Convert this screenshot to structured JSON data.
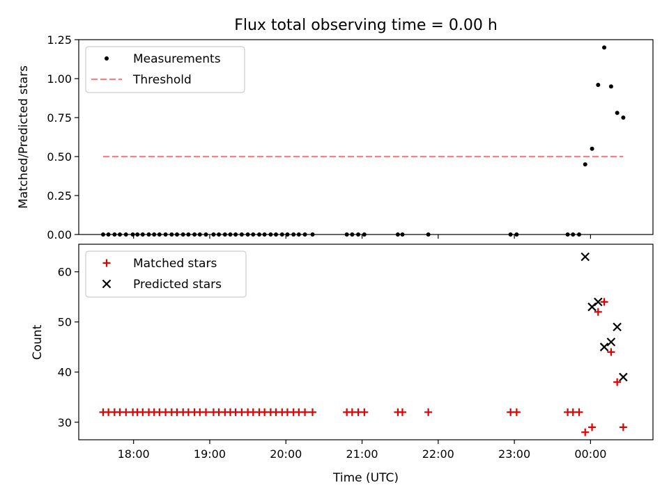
{
  "title": "Flux total observing time = 0.00 h",
  "colors": {
    "threshold": "#ff7f7f",
    "measurement": "#000000",
    "matched": "#e00000",
    "predicted": "#000000"
  },
  "chart_data": [
    {
      "type": "scatter",
      "name": "ratio",
      "ylabel": "Matched/Predicted stars",
      "xlabel": "",
      "xlim": [
        17.28,
        24.82
      ],
      "ylim": [
        0,
        1.25
      ],
      "yticks": [
        0.0,
        0.25,
        0.5,
        0.75,
        1.0,
        1.25
      ],
      "ytick_labels": [
        "0.00",
        "0.25",
        "0.50",
        "0.75",
        "1.00",
        "1.25"
      ],
      "legend": {
        "placement": "top-left",
        "entries": [
          {
            "label": "Measurements",
            "marker": "dot"
          },
          {
            "label": "Threshold",
            "marker": "dashed-line"
          }
        ]
      },
      "series": [
        {
          "name": "Measurements",
          "points": [
            [
              17.6,
              0.0
            ],
            [
              17.67,
              0.0
            ],
            [
              17.75,
              0.0
            ],
            [
              17.82,
              0.0
            ],
            [
              17.9,
              0.0
            ],
            [
              17.99,
              0.0
            ],
            [
              18.05,
              0.0
            ],
            [
              18.12,
              0.0
            ],
            [
              18.2,
              0.0
            ],
            [
              18.27,
              0.0
            ],
            [
              18.34,
              0.0
            ],
            [
              18.42,
              0.0
            ],
            [
              18.5,
              0.0
            ],
            [
              18.57,
              0.0
            ],
            [
              18.65,
              0.0
            ],
            [
              18.72,
              0.0
            ],
            [
              18.8,
              0.0
            ],
            [
              18.87,
              0.0
            ],
            [
              18.95,
              0.0
            ],
            [
              19.05,
              0.0
            ],
            [
              19.12,
              0.0
            ],
            [
              19.2,
              0.0
            ],
            [
              19.27,
              0.0
            ],
            [
              19.34,
              0.0
            ],
            [
              19.42,
              0.0
            ],
            [
              19.5,
              0.0
            ],
            [
              19.57,
              0.0
            ],
            [
              19.65,
              0.0
            ],
            [
              19.72,
              0.0
            ],
            [
              19.8,
              0.0
            ],
            [
              19.87,
              0.0
            ],
            [
              19.95,
              0.0
            ],
            [
              20.02,
              0.0
            ],
            [
              20.1,
              0.0
            ],
            [
              20.17,
              0.0
            ],
            [
              20.25,
              0.0
            ],
            [
              20.35,
              0.0
            ],
            [
              20.8,
              0.0
            ],
            [
              20.87,
              0.0
            ],
            [
              20.95,
              0.0
            ],
            [
              21.03,
              0.0
            ],
            [
              21.47,
              0.0
            ],
            [
              21.53,
              0.0
            ],
            [
              21.87,
              0.0
            ],
            [
              22.95,
              0.0
            ],
            [
              23.03,
              0.0
            ],
            [
              23.7,
              0.0
            ],
            [
              23.77,
              0.0
            ],
            [
              23.85,
              0.0
            ],
            [
              23.93,
              0.45
            ],
            [
              24.02,
              0.55
            ],
            [
              24.1,
              0.96
            ],
            [
              24.18,
              1.2
            ],
            [
              24.27,
              0.95
            ],
            [
              24.35,
              0.78
            ],
            [
              24.43,
              0.75
            ]
          ]
        },
        {
          "name": "Threshold",
          "line": [
            [
              17.6,
              0.5
            ],
            [
              24.43,
              0.5
            ]
          ]
        }
      ]
    },
    {
      "type": "scatter",
      "name": "counts",
      "ylabel": "Count",
      "xlabel": "Time (UTC)",
      "xlim": [
        17.28,
        24.82
      ],
      "ylim": [
        26.5,
        65.5
      ],
      "yticks": [
        30,
        40,
        50,
        60
      ],
      "ytick_labels": [
        "30",
        "40",
        "50",
        "60"
      ],
      "xticks": [
        18,
        19,
        20,
        21,
        22,
        23,
        24
      ],
      "xtick_labels": [
        "18:00",
        "19:00",
        "20:00",
        "21:00",
        "22:00",
        "23:00",
        "00:00"
      ],
      "legend": {
        "placement": "top-left",
        "entries": [
          {
            "label": "Matched stars",
            "marker": "plus"
          },
          {
            "label": "Predicted stars",
            "marker": "x"
          }
        ]
      },
      "series": [
        {
          "name": "Matched stars",
          "points": [
            [
              17.6,
              32
            ],
            [
              17.67,
              32
            ],
            [
              17.75,
              32
            ],
            [
              17.82,
              32
            ],
            [
              17.9,
              32
            ],
            [
              17.99,
              32
            ],
            [
              18.05,
              32
            ],
            [
              18.12,
              32
            ],
            [
              18.2,
              32
            ],
            [
              18.27,
              32
            ],
            [
              18.34,
              32
            ],
            [
              18.42,
              32
            ],
            [
              18.5,
              32
            ],
            [
              18.57,
              32
            ],
            [
              18.65,
              32
            ],
            [
              18.72,
              32
            ],
            [
              18.8,
              32
            ],
            [
              18.87,
              32
            ],
            [
              18.95,
              32
            ],
            [
              19.05,
              32
            ],
            [
              19.12,
              32
            ],
            [
              19.2,
              32
            ],
            [
              19.27,
              32
            ],
            [
              19.34,
              32
            ],
            [
              19.42,
              32
            ],
            [
              19.5,
              32
            ],
            [
              19.57,
              32
            ],
            [
              19.65,
              32
            ],
            [
              19.72,
              32
            ],
            [
              19.8,
              32
            ],
            [
              19.87,
              32
            ],
            [
              19.95,
              32
            ],
            [
              20.02,
              32
            ],
            [
              20.1,
              32
            ],
            [
              20.17,
              32
            ],
            [
              20.25,
              32
            ],
            [
              20.35,
              32
            ],
            [
              20.8,
              32
            ],
            [
              20.87,
              32
            ],
            [
              20.95,
              32
            ],
            [
              21.03,
              32
            ],
            [
              21.47,
              32
            ],
            [
              21.53,
              32
            ],
            [
              21.87,
              32
            ],
            [
              22.95,
              32
            ],
            [
              23.03,
              32
            ],
            [
              23.7,
              32
            ],
            [
              23.77,
              32
            ],
            [
              23.85,
              32
            ],
            [
              23.93,
              28
            ],
            [
              24.02,
              29
            ],
            [
              24.1,
              52
            ],
            [
              24.18,
              54
            ],
            [
              24.27,
              44
            ],
            [
              24.35,
              38
            ],
            [
              24.43,
              29
            ]
          ]
        },
        {
          "name": "Predicted stars",
          "points": [
            [
              23.93,
              63
            ],
            [
              24.02,
              53
            ],
            [
              24.1,
              54
            ],
            [
              24.18,
              45
            ],
            [
              24.27,
              46
            ],
            [
              24.35,
              49
            ],
            [
              24.43,
              39
            ]
          ]
        }
      ]
    }
  ]
}
